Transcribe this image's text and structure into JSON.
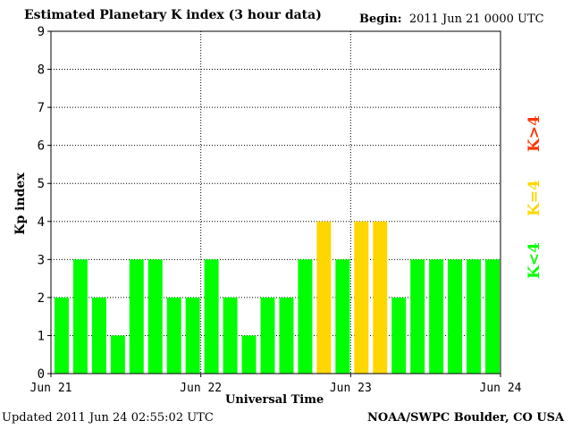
{
  "header": {
    "title": "Estimated Planetary K index (3 hour data)",
    "begin_label": "Begin:",
    "begin_value": "2011 Jun 21 0000 UTC"
  },
  "footer": {
    "updated": "Updated 2011 Jun 24 02:55:02 UTC",
    "credit": "NOAA/SWPC Boulder, CO USA"
  },
  "legend": {
    "low": "K<4",
    "equal": "K=4",
    "high": "K>4"
  },
  "colors": {
    "low": "#00ff00",
    "equal": "#ffd700",
    "high": "#ff3300"
  },
  "chart_data": {
    "type": "bar",
    "title": "Estimated Planetary K index (3 hour data)",
    "xlabel": "Universal Time",
    "ylabel": "Kp index",
    "ylim": [
      0,
      9
    ],
    "yticks": [
      "0",
      "1",
      "2",
      "3",
      "4",
      "5",
      "6",
      "7",
      "8",
      "9"
    ],
    "xticks": [
      "Jun 21",
      "Jun 22",
      "Jun 23",
      "Jun 24"
    ],
    "grid": true,
    "values": [
      2,
      3,
      2,
      1,
      3,
      3,
      2,
      2,
      3,
      2,
      1,
      2,
      2,
      3,
      4,
      3,
      4,
      4,
      2,
      3,
      3,
      3,
      3,
      3
    ]
  }
}
